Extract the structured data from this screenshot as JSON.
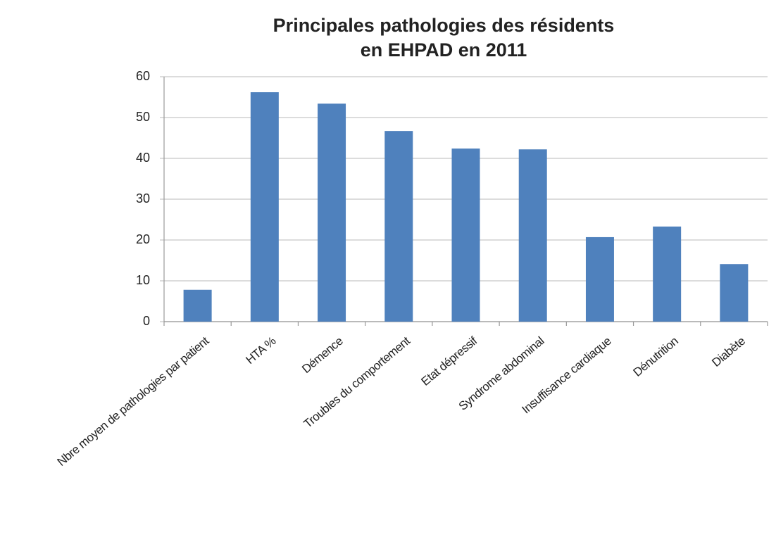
{
  "chart_data": {
    "type": "bar",
    "title": [
      "Principales pathologies des résidents",
      "en EHPAD en 2011"
    ],
    "categories": [
      "Nbre moyen de pathologies par patient",
      "HTA %",
      "Démence",
      "Troubles du comportement",
      "Etat dépressif",
      "Syndrome abdominal",
      "Insuffisance cardiaque",
      "Dénutrition",
      "Diabète"
    ],
    "values": [
      7.8,
      56.2,
      53.4,
      46.7,
      42.4,
      42.2,
      20.7,
      23.3,
      14.1
    ],
    "color": "#4f81bd",
    "ylim": [
      0,
      60
    ],
    "yticks": [
      0,
      10,
      20,
      30,
      40,
      50,
      60
    ],
    "grid": true
  }
}
